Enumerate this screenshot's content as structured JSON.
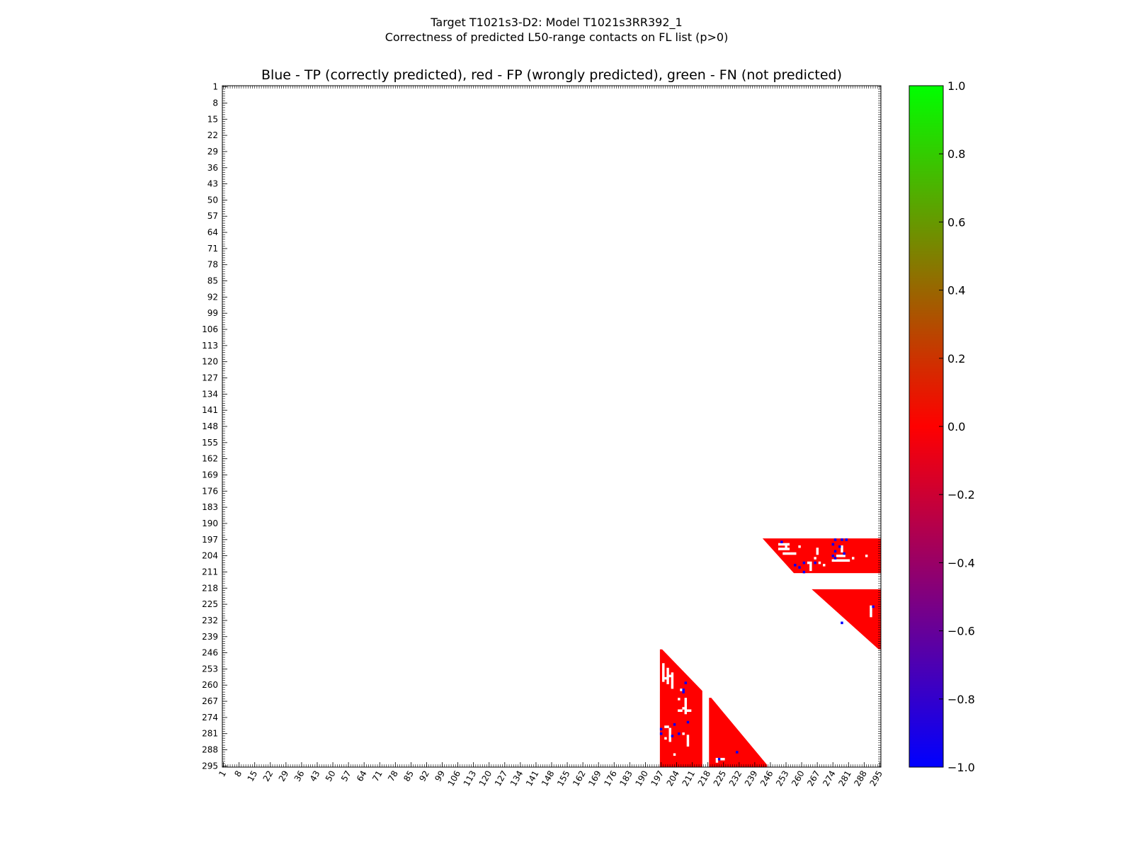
{
  "chart_data": {
    "type": "heatmap",
    "suptitle": "Target T1021s3-D2: Model T1021s3RR392_1",
    "subtitle": "Correctness of predicted L50-range contacts on FL list (p>0)",
    "title": "Blue - TP (correctly predicted), red - FP (wrongly predicted), green - FN (not predicted)",
    "xlabel": "",
    "ylabel": "",
    "matrix_size": 295,
    "axis_range": [
      1,
      295
    ],
    "tick_labels": [
      "1",
      "8",
      "15",
      "22",
      "29",
      "36",
      "43",
      "50",
      "57",
      "64",
      "71",
      "78",
      "85",
      "92",
      "99",
      "106",
      "113",
      "120",
      "127",
      "134",
      "141",
      "148",
      "155",
      "162",
      "169",
      "176",
      "183",
      "190",
      "197",
      "204",
      "211",
      "218",
      "225",
      "232",
      "239",
      "246",
      "253",
      "260",
      "267",
      "274",
      "281",
      "288",
      "295"
    ],
    "colorbar": {
      "range": [
        -1.0,
        1.0
      ],
      "colors": [
        "#0000ff",
        "#ff0000",
        "#00ff00"
      ],
      "tick_values": [
        1.0,
        0.8,
        0.6,
        0.4,
        0.2,
        0.0,
        -0.2,
        -0.4,
        -0.6,
        -0.8,
        -1.0
      ],
      "tick_labels": [
        "1.0",
        "0.8",
        "0.6",
        "0.4",
        "0.2",
        "0.0",
        "−0.2",
        "−0.4",
        "−0.6",
        "−0.8",
        "−1.0"
      ]
    },
    "legend": [
      {
        "label": "TP (correctly predicted)",
        "value": -1.0,
        "color": "#0000ff"
      },
      {
        "label": "FP (wrongly predicted)",
        "value": 0.0,
        "color": "#ff0000"
      },
      {
        "label": "FN (not predicted)",
        "value": 1.0,
        "color": "#00ff00"
      }
    ],
    "fp_regions": [
      {
        "shape": "triangle-upper",
        "rows": [
          197,
          211
        ],
        "cols": [
          243,
          295
        ],
        "diag_start": [
          197,
          243
        ],
        "diag_end": [
          211,
          257
        ]
      },
      {
        "shape": "triangle-upper",
        "rows": [
          219,
          244
        ],
        "cols": [
          265,
          295
        ],
        "diag_start": [
          219,
          265
        ],
        "diag_end": [
          244,
          295
        ]
      },
      {
        "shape": "triangle-lower",
        "rows": [
          245,
          295
        ],
        "cols": [
          197,
          215
        ],
        "diag_start": [
          245,
          197
        ],
        "diag_end": [
          263,
          215
        ]
      },
      {
        "shape": "triangle-lower",
        "rows": [
          266,
          295
        ],
        "cols": [
          219,
          244
        ],
        "diag_start": [
          266,
          219
        ],
        "diag_end": [
          295,
          244
        ]
      }
    ],
    "tp_points": [
      [
        197,
        275
      ],
      [
        197,
        278
      ],
      [
        197,
        280
      ],
      [
        198,
        251
      ],
      [
        199,
        274
      ],
      [
        200,
        277
      ],
      [
        202,
        275
      ],
      [
        203,
        279
      ],
      [
        204,
        274
      ],
      [
        205,
        275
      ],
      [
        207,
        261
      ],
      [
        207,
        266
      ],
      [
        208,
        257
      ],
      [
        209,
        259
      ],
      [
        211,
        261
      ],
      [
        233,
        278
      ],
      [
        226,
        292
      ],
      [
        259,
        208
      ],
      [
        262,
        207
      ],
      [
        263,
        207
      ],
      [
        277,
        203
      ],
      [
        279,
        197
      ],
      [
        281,
        197
      ],
      [
        281,
        205
      ],
      [
        282,
        202
      ],
      [
        289,
        231
      ],
      [
        292,
        223
      ],
      [
        276,
        209
      ]
    ],
    "fp_holes": [
      [
        199,
        250
      ],
      [
        199,
        251
      ],
      [
        199,
        252
      ],
      [
        199,
        253
      ],
      [
        199,
        254
      ],
      [
        200,
        253
      ],
      [
        201,
        250
      ],
      [
        201,
        251
      ],
      [
        201,
        252
      ],
      [
        201,
        253
      ],
      [
        201,
        254
      ],
      [
        203,
        252
      ],
      [
        203,
        253
      ],
      [
        203,
        254
      ],
      [
        203,
        255
      ],
      [
        203,
        256
      ],
      [
        203,
        257
      ],
      [
        200,
        259
      ],
      [
        201,
        267
      ],
      [
        202,
        267
      ],
      [
        203,
        267
      ],
      [
        200,
        278
      ],
      [
        201,
        278
      ],
      [
        202,
        278
      ],
      [
        204,
        276
      ],
      [
        204,
        277
      ],
      [
        204,
        278
      ],
      [
        204,
        279
      ],
      [
        206,
        274
      ],
      [
        206,
        275
      ],
      [
        206,
        276
      ],
      [
        206,
        277
      ],
      [
        206,
        278
      ],
      [
        206,
        279
      ],
      [
        206,
        280
      ],
      [
        206,
        281
      ],
      [
        207,
        263
      ],
      [
        207,
        264
      ],
      [
        208,
        264
      ],
      [
        209,
        264
      ],
      [
        210,
        264
      ],
      [
        207,
        268
      ],
      [
        208,
        270
      ],
      [
        205,
        283
      ],
      [
        204,
        289
      ],
      [
        205,
        266
      ],
      [
        251,
        198
      ],
      [
        252,
        198
      ],
      [
        253,
        198
      ],
      [
        254,
        198
      ],
      [
        255,
        198
      ],
      [
        256,
        198
      ],
      [
        257,
        198
      ],
      [
        258,
        198
      ],
      [
        253,
        200
      ],
      [
        254,
        200
      ],
      [
        255,
        200
      ],
      [
        256,
        200
      ],
      [
        257,
        200
      ],
      [
        258,
        200
      ],
      [
        259,
        200
      ],
      [
        257,
        199
      ],
      [
        256,
        201
      ],
      [
        255,
        202
      ],
      [
        256,
        202
      ],
      [
        257,
        202
      ],
      [
        258,
        202
      ],
      [
        259,
        202
      ],
      [
        260,
        202
      ],
      [
        261,
        202
      ],
      [
        266,
        208
      ],
      [
        267,
        208
      ],
      [
        268,
        208
      ],
      [
        269,
        208
      ],
      [
        270,
        208
      ],
      [
        271,
        208
      ],
      [
        272,
        208
      ],
      [
        271,
        205
      ],
      [
        271,
        206
      ],
      [
        270,
        207
      ],
      [
        271,
        209
      ],
      [
        271,
        210
      ],
      [
        279,
        201
      ],
      [
        280,
        201
      ],
      [
        281,
        201
      ],
      [
        282,
        201
      ],
      [
        283,
        201
      ],
      [
        284,
        201
      ],
      [
        278,
        199
      ],
      [
        278,
        200
      ],
      [
        283,
        199
      ],
      [
        282,
        209
      ],
      [
        283,
        209
      ],
      [
        284,
        209
      ],
      [
        285,
        209
      ],
      [
        286,
        209
      ],
      [
        281,
        207
      ],
      [
        266,
        205
      ],
      [
        262,
        206
      ],
      [
        290,
        203
      ],
      [
        292,
        222
      ],
      [
        292,
        223
      ],
      [
        292,
        224
      ],
      [
        292,
        225
      ],
      [
        293,
        222
      ],
      [
        226,
        291
      ],
      [
        227,
        291
      ],
      [
        228,
        291
      ],
      [
        229,
        291
      ],
      [
        230,
        291
      ]
    ]
  }
}
